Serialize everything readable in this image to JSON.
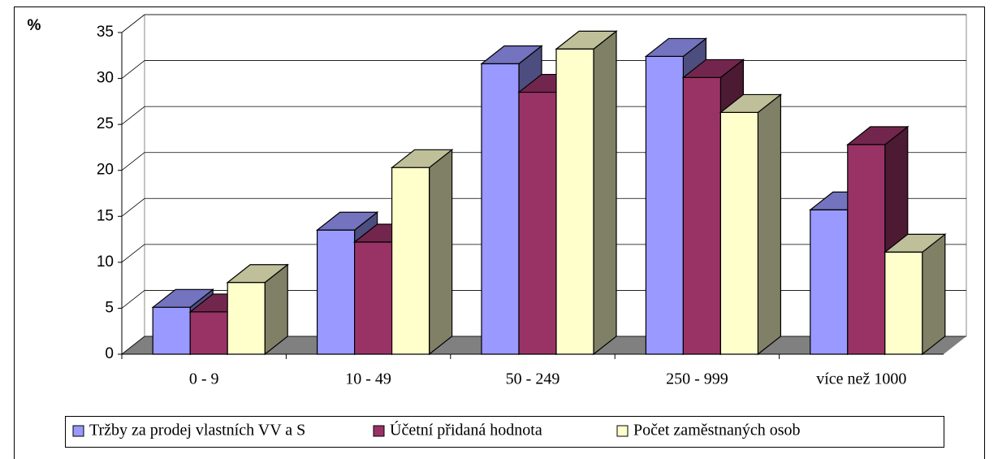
{
  "chart_data": {
    "type": "bar3d",
    "y_label": "%",
    "categories": [
      "0 - 9",
      "10 - 49",
      "50 - 249",
      "250 - 999",
      "více než 1000"
    ],
    "series": [
      {
        "name": "Tržby za prodej vlastních VV a S",
        "color": "#9999ff",
        "values": [
          5.1,
          13.5,
          31.6,
          32.4,
          15.7
        ]
      },
      {
        "name": "Účetní přidaná hodnota",
        "color": "#993366",
        "values": [
          4.6,
          12.2,
          28.5,
          30.1,
          22.8
        ]
      },
      {
        "name": "Počet zaměstnaných osob",
        "color": "#ffffcc",
        "values": [
          7.8,
          20.3,
          33.2,
          26.3,
          11.1
        ]
      }
    ],
    "ylim": [
      0,
      35
    ],
    "yticks": [
      0,
      5,
      10,
      15,
      20,
      25,
      30,
      35
    ],
    "grid": true
  }
}
